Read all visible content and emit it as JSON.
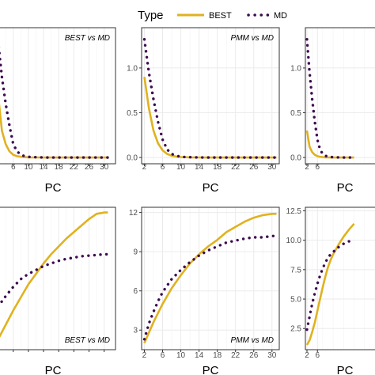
{
  "legend": {
    "title": "Type",
    "entries": [
      {
        "label": "BEST",
        "color": "#E0B21F",
        "style": "solid"
      },
      {
        "label": "MD",
        "color": "#3D0C4F",
        "style": "dotted"
      }
    ]
  },
  "colors": {
    "best": "#E0B21F",
    "md": "#3D0C4F",
    "panel_border": "#333333",
    "grid": "#ebebeb"
  },
  "chart_data": [
    {
      "type": "line",
      "facet": "BEST vs MD",
      "xlabel": "PC",
      "ylabel": "",
      "xlim": [
        0,
        33
      ],
      "ylim": [
        -0.07,
        1.45
      ],
      "grid": true,
      "x_ticks": [
        2,
        6,
        10,
        14,
        18,
        22,
        26,
        30
      ],
      "x_ticklabels": [
        "",
        "6",
        "10",
        "14",
        "18",
        "22",
        "26",
        "30"
      ],
      "y_ticks": [],
      "y_ticklabels": [],
      "series": [
        {
          "name": "BEST",
          "x": [
            2,
            3,
            4,
            5,
            6,
            7,
            8,
            9,
            10,
            12,
            14,
            16,
            18,
            20,
            22,
            24,
            26,
            28,
            30,
            31
          ],
          "values": [
            0.7,
            0.3,
            0.15,
            0.07,
            0.03,
            0.015,
            0.008,
            0.004,
            0.002,
            0.001,
            0,
            0,
            0,
            0,
            0,
            0,
            0,
            0,
            0,
            0
          ]
        },
        {
          "name": "MD",
          "x": [
            2,
            3,
            4,
            5,
            6,
            7,
            8,
            9,
            10,
            12,
            14,
            16,
            18,
            20,
            22,
            24,
            26,
            28,
            30,
            31
          ],
          "values": [
            1.3,
            0.9,
            0.6,
            0.36,
            0.15,
            0.07,
            0.03,
            0.015,
            0.007,
            0.003,
            0.001,
            0,
            0,
            0,
            0,
            0,
            0,
            0,
            0,
            0
          ]
        }
      ]
    },
    {
      "type": "line",
      "facet": "PMM vs MD",
      "xlabel": "PC",
      "ylabel": "",
      "xlim": [
        1.4,
        31.6
      ],
      "ylim": [
        -0.07,
        1.45
      ],
      "grid": true,
      "x_ticks": [
        2,
        6,
        10,
        14,
        18,
        22,
        26,
        30
      ],
      "x_ticklabels": [
        "2",
        "6",
        "10",
        "14",
        "18",
        "22",
        "26",
        "30"
      ],
      "y_ticks": [
        0.0,
        0.5,
        1.0
      ],
      "y_ticklabels": [
        "0.0",
        "0.5",
        "1.0"
      ],
      "series": [
        {
          "name": "BEST",
          "x": [
            2,
            3,
            4,
            5,
            6,
            7,
            8,
            9,
            10,
            12,
            14,
            16,
            18,
            20,
            22,
            24,
            26,
            28,
            30,
            31
          ],
          "values": [
            0.9,
            0.55,
            0.3,
            0.16,
            0.08,
            0.04,
            0.02,
            0.01,
            0.005,
            0.002,
            0.001,
            0,
            0,
            0,
            0,
            0,
            0,
            0,
            0,
            0
          ]
        },
        {
          "name": "MD",
          "x": [
            2,
            3,
            4,
            5,
            6,
            7,
            8,
            9,
            10,
            12,
            14,
            16,
            18,
            20,
            22,
            24,
            26,
            28,
            30,
            31
          ],
          "values": [
            1.32,
            0.95,
            0.65,
            0.4,
            0.2,
            0.09,
            0.04,
            0.02,
            0.008,
            0.003,
            0.001,
            0,
            0,
            0,
            0,
            0,
            0,
            0,
            0,
            0
          ]
        }
      ]
    },
    {
      "type": "line",
      "facet": "",
      "xlabel": "PC",
      "ylabel": "",
      "xlim": [
        1.4,
        31.6
      ],
      "ylim": [
        -0.07,
        1.45
      ],
      "grid": true,
      "x_ticks": [
        2,
        6
      ],
      "x_ticklabels": [
        "2",
        "6"
      ],
      "y_ticks": [
        0.0,
        0.5,
        1.0
      ],
      "y_ticklabels": [
        "0.0",
        "0.5",
        "1.0"
      ],
      "series": [
        {
          "name": "BEST",
          "x": [
            2,
            3,
            4,
            5,
            6,
            7,
            8,
            9,
            10,
            12,
            14,
            16,
            18,
            20
          ],
          "values": [
            0.3,
            0.12,
            0.06,
            0.03,
            0.015,
            0.008,
            0.004,
            0.002,
            0.001,
            0,
            0,
            0,
            0,
            0
          ]
        },
        {
          "name": "MD",
          "x": [
            2,
            3,
            4,
            5,
            6,
            7,
            8,
            9,
            10,
            12,
            14,
            16,
            18,
            20
          ],
          "values": [
            1.32,
            0.95,
            0.65,
            0.4,
            0.2,
            0.09,
            0.04,
            0.02,
            0.008,
            0.003,
            0.001,
            0,
            0,
            0
          ]
        }
      ]
    },
    {
      "type": "line",
      "facet": "BEST vs MD",
      "xlabel": "PC",
      "ylabel": "",
      "xlim": [
        0,
        33
      ],
      "ylim": [
        1.5,
        12.4
      ],
      "grid": true,
      "x_ticks": [
        2,
        6,
        10,
        14,
        18,
        22,
        26,
        30
      ],
      "x_ticklabels": [
        "",
        "",
        "",
        "",
        "",
        "",
        "",
        ""
      ],
      "y_ticks": [],
      "y_ticklabels": [],
      "series": [
        {
          "name": "BEST",
          "x": [
            2,
            4,
            6,
            8,
            10,
            12,
            14,
            16,
            18,
            20,
            22,
            24,
            26,
            28,
            30,
            31
          ],
          "values": [
            2.3,
            3.4,
            4.5,
            5.5,
            6.5,
            7.3,
            8.1,
            8.8,
            9.4,
            10.0,
            10.5,
            11.0,
            11.5,
            11.9,
            12.0,
            12.0
          ]
        },
        {
          "name": "MD",
          "x": [
            2,
            4,
            6,
            8,
            10,
            12,
            14,
            16,
            18,
            20,
            22,
            24,
            26,
            28,
            30,
            31
          ],
          "values": [
            4.8,
            5.6,
            6.3,
            6.9,
            7.3,
            7.6,
            7.9,
            8.1,
            8.3,
            8.45,
            8.55,
            8.65,
            8.7,
            8.75,
            8.8,
            8.8
          ]
        }
      ]
    },
    {
      "type": "line",
      "facet": "PMM vs MD",
      "xlabel": "PC",
      "ylabel": "",
      "xlim": [
        1.4,
        31.6
      ],
      "ylim": [
        1.5,
        12.4
      ],
      "grid": true,
      "x_ticks": [
        2,
        6,
        10,
        14,
        18,
        22,
        26,
        30
      ],
      "x_ticklabels": [
        "2",
        "6",
        "10",
        "14",
        "18",
        "22",
        "26",
        "30"
      ],
      "y_ticks": [
        3,
        6,
        9,
        12
      ],
      "y_ticklabels": [
        "3",
        "6",
        "9",
        "12"
      ],
      "series": [
        {
          "name": "BEST",
          "x": [
            2,
            3,
            4,
            5,
            6,
            8,
            10,
            12,
            14,
            16,
            18,
            20,
            22,
            24,
            26,
            28,
            30,
            31
          ],
          "values": [
            2.0,
            2.8,
            3.6,
            4.3,
            5.0,
            6.2,
            7.2,
            8.1,
            8.8,
            9.4,
            9.9,
            10.5,
            10.9,
            11.3,
            11.6,
            11.8,
            11.9,
            11.9
          ]
        },
        {
          "name": "MD",
          "x": [
            2,
            3,
            4,
            5,
            6,
            8,
            10,
            12,
            14,
            16,
            18,
            20,
            22,
            24,
            26,
            28,
            30,
            31
          ],
          "values": [
            2.3,
            3.5,
            4.4,
            5.2,
            5.9,
            6.9,
            7.6,
            8.2,
            8.7,
            9.1,
            9.4,
            9.7,
            9.85,
            10.0,
            10.1,
            10.1,
            10.2,
            10.2
          ]
        }
      ]
    },
    {
      "type": "line",
      "facet": "",
      "xlabel": "PC",
      "ylabel": "",
      "xlim": [
        1.4,
        31.6
      ],
      "ylim": [
        0.7,
        12.8
      ],
      "grid": true,
      "x_ticks": [
        2,
        6
      ],
      "x_ticklabels": [
        "2",
        "6"
      ],
      "y_ticks": [
        2.5,
        5.0,
        7.5,
        10.0,
        12.5
      ],
      "y_ticklabels": [
        "2.5",
        "5.0",
        "7.5",
        "10.0",
        "12.5"
      ],
      "series": [
        {
          "name": "BEST",
          "x": [
            2,
            3,
            4,
            5,
            6,
            7,
            8,
            9,
            10,
            11,
            12,
            14,
            16,
            18,
            20
          ],
          "values": [
            1.1,
            1.5,
            2.2,
            3.0,
            4.0,
            5.0,
            6.0,
            6.9,
            7.7,
            8.3,
            8.8,
            9.6,
            10.3,
            10.9,
            11.4
          ]
        },
        {
          "name": "MD",
          "x": [
            2,
            3,
            4,
            5,
            6,
            7,
            8,
            9,
            10,
            11,
            12,
            14,
            16,
            18,
            20
          ],
          "values": [
            2.4,
            3.5,
            4.6,
            5.5,
            6.3,
            7.0,
            7.6,
            8.1,
            8.5,
            8.8,
            9.0,
            9.4,
            9.7,
            9.9,
            10.0
          ]
        }
      ]
    }
  ]
}
